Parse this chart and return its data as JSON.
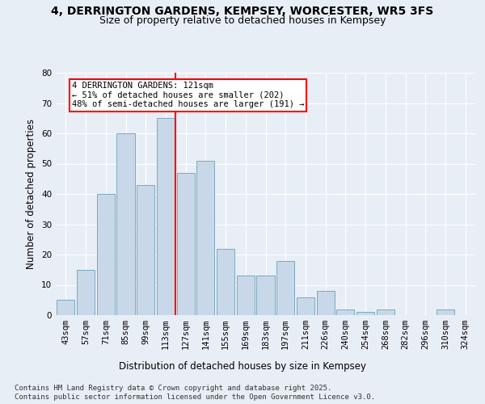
{
  "title_line1": "4, DERRINGTON GARDENS, KEMPSEY, WORCESTER, WR5 3FS",
  "title_line2": "Size of property relative to detached houses in Kempsey",
  "xlabel": "Distribution of detached houses by size in Kempsey",
  "ylabel": "Number of detached properties",
  "bar_labels": [
    "43sqm",
    "57sqm",
    "71sqm",
    "85sqm",
    "99sqm",
    "113sqm",
    "127sqm",
    "141sqm",
    "155sqm",
    "169sqm",
    "183sqm",
    "197sqm",
    "211sqm",
    "226sqm",
    "240sqm",
    "254sqm",
    "268sqm",
    "282sqm",
    "296sqm",
    "310sqm",
    "324sqm"
  ],
  "bar_values": [
    5,
    15,
    40,
    60,
    43,
    65,
    47,
    51,
    22,
    13,
    13,
    18,
    6,
    8,
    2,
    1,
    2,
    0,
    0,
    2,
    0
  ],
  "bar_color": "#c8d8e8",
  "bar_edge_color": "#7aaabf",
  "vline_color": "red",
  "annotation_text": "4 DERRINGTON GARDENS: 121sqm\n← 51% of detached houses are smaller (202)\n48% of semi-detached houses are larger (191) →",
  "annotation_box_color": "white",
  "annotation_box_edge": "red",
  "ylim": [
    0,
    80
  ],
  "yticks": [
    0,
    10,
    20,
    30,
    40,
    50,
    60,
    70,
    80
  ],
  "background_color": "#e8eef5",
  "plot_background": "#e8eef5",
  "footer_line1": "Contains HM Land Registry data © Crown copyright and database right 2025.",
  "footer_line2": "Contains public sector information licensed under the Open Government Licence v3.0.",
  "title_fontsize": 10,
  "subtitle_fontsize": 9,
  "axis_label_fontsize": 8.5,
  "tick_fontsize": 7.5,
  "annotation_fontsize": 7.5,
  "footer_fontsize": 6.5
}
